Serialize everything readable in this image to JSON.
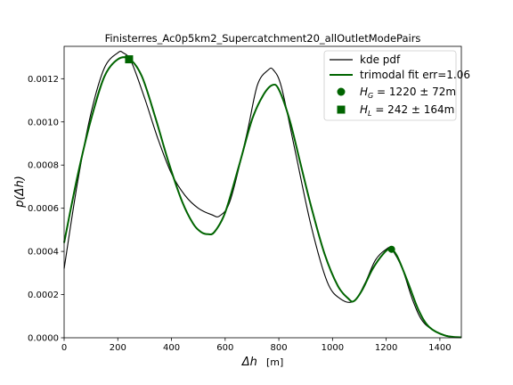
{
  "chart_data": {
    "type": "line",
    "title": "Finisterres_Ac0p5km2_Supercatchment20_allOutletModePairs",
    "xlabel_main": "Δh",
    "xlabel_unit": "[m]",
    "ylabel": "p(Δh)",
    "xlim": [
      0,
      1480
    ],
    "ylim": [
      0,
      0.00135
    ],
    "xticks": [
      0,
      200,
      400,
      600,
      800,
      1000,
      1200,
      1400
    ],
    "xtick_labels": [
      "0",
      "200",
      "400",
      "600",
      "800",
      "1000",
      "1200",
      "1400"
    ],
    "yticks": [
      0,
      0.0002,
      0.0004,
      0.0006,
      0.0008,
      0.001,
      0.0012
    ],
    "ytick_labels": [
      "0.0000",
      "0.0002",
      "0.0004",
      "0.0006",
      "0.0008",
      "0.0010",
      "0.0012"
    ],
    "series": [
      {
        "name": "kde pdf",
        "color": "#000000",
        "x": [
          0,
          50,
          100,
          150,
          200,
          220,
          250,
          300,
          350,
          400,
          450,
          500,
          550,
          580,
          620,
          680,
          720,
          760,
          780,
          810,
          860,
          920,
          980,
          1030,
          1080,
          1120,
          1160,
          1200,
          1220,
          1260,
          1300,
          1340,
          1400,
          1450,
          1480
        ],
        "y": [
          0.00032,
          0.00072,
          0.00104,
          0.00125,
          0.00132,
          0.00132,
          0.00128,
          0.00111,
          0.00092,
          0.00076,
          0.00066,
          0.0006,
          0.00057,
          0.000565,
          0.00064,
          0.00094,
          0.00117,
          0.00124,
          0.00124,
          0.00116,
          0.00087,
          0.00052,
          0.00026,
          0.00018,
          0.00017,
          0.00025,
          0.00036,
          0.00041,
          0.00041,
          0.00032,
          0.00017,
          7e-05,
          2e-05,
          4e-06,
          1e-06
        ]
      },
      {
        "name": "trimodal fit err=1.06",
        "color": "#006400",
        "x": [
          0,
          50,
          100,
          150,
          200,
          245,
          290,
          340,
          390,
          440,
          480,
          510,
          535,
          560,
          600,
          650,
          700,
          740,
          775,
          800,
          840,
          880,
          920,
          970,
          1020,
          1060,
          1080,
          1110,
          1150,
          1190,
          1215,
          1240,
          1280,
          1320,
          1360,
          1420,
          1480
        ],
        "y": [
          0.00044,
          0.00075,
          0.00101,
          0.00121,
          0.00129,
          0.00129,
          0.00121,
          0.00102,
          0.00081,
          0.00063,
          0.00053,
          0.00049,
          0.00048,
          0.00049,
          0.00058,
          0.00079,
          0.00101,
          0.00112,
          0.00117,
          0.00115,
          0.00101,
          0.00081,
          0.00061,
          0.00039,
          0.00024,
          0.00018,
          0.00017,
          0.00022,
          0.00032,
          0.00039,
          0.00041,
          0.00038,
          0.00026,
          0.00013,
          5e-05,
          1e-05,
          2e-06
        ]
      }
    ],
    "markers": [
      {
        "name": "H_G = 1220 ± 72m",
        "shape": "circle",
        "x": 1220,
        "y": 0.00041,
        "color": "#006400"
      },
      {
        "name": "H_L = 242 ± 164m",
        "shape": "square",
        "x": 242,
        "y": 0.00129,
        "color": "#006400"
      }
    ],
    "legend": {
      "placement": "top-right",
      "entries": [
        {
          "label": "kde pdf",
          "kind": "line",
          "color": "#000000"
        },
        {
          "label": "trimodal fit err=1.06",
          "kind": "line",
          "color": "#006400"
        },
        {
          "sym": "H",
          "sub": "G",
          "value": " = 1220 ± 72m",
          "kind": "circle",
          "color": "#006400"
        },
        {
          "sym": "H",
          "sub": "L",
          "value": " = 242 ± 164m",
          "kind": "square",
          "color": "#006400"
        }
      ]
    }
  }
}
